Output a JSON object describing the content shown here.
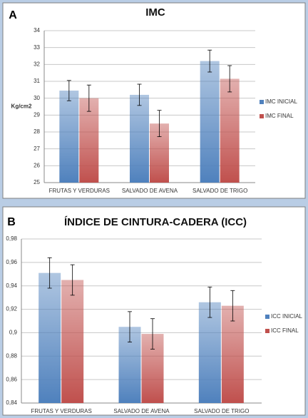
{
  "chart_data": [
    {
      "type": "bar",
      "panel": "A",
      "title": "IMC",
      "y_label": "Kg/cm2",
      "categories": [
        "FRUTAS Y VERDURAS",
        "SALVADO DE AVENA",
        "SALVADO DE TRIGO"
      ],
      "series": [
        {
          "name": "IMC INICIAL",
          "color": "#4f81bd",
          "values": [
            30.45,
            30.2,
            32.2
          ],
          "errors": [
            0.6,
            0.63,
            0.65
          ]
        },
        {
          "name": "IMC FINAL",
          "color": "#c0504d",
          "values": [
            30.0,
            28.5,
            31.15
          ],
          "errors": [
            0.78,
            0.78,
            0.78
          ]
        }
      ],
      "ylim": [
        25,
        34
      ],
      "yticks": [
        25,
        26,
        27,
        28,
        29,
        30,
        31,
        32,
        33,
        34
      ],
      "grid": true,
      "legend": "right"
    },
    {
      "type": "bar",
      "panel": "B",
      "title": "ÍNDICE DE CINTURA-CADERA (ICC)",
      "categories": [
        "FRUTAS Y VERDURAS",
        "SALVADO DE AVENA",
        "SALVADO DE TRIGO"
      ],
      "series": [
        {
          "name": "ICC INICIAL",
          "color": "#4f81bd",
          "values": [
            0.951,
            0.905,
            0.926
          ],
          "errors": [
            0.013,
            0.013,
            0.013
          ]
        },
        {
          "name": "ICC FINAL",
          "color": "#c0504d",
          "values": [
            0.945,
            0.899,
            0.923
          ],
          "errors": [
            0.013,
            0.013,
            0.013
          ]
        }
      ],
      "ylim": [
        0.84,
        0.98
      ],
      "yticks": [
        {
          "value": 0.84,
          "label": "0,84"
        },
        {
          "value": 0.86,
          "label": "0,86"
        },
        {
          "value": 0.88,
          "label": "0,88"
        },
        {
          "value": 0.9,
          "label": "0,9"
        },
        {
          "value": 0.92,
          "label": "0,92"
        },
        {
          "value": 0.94,
          "label": "0,94"
        },
        {
          "value": 0.96,
          "label": "0,96"
        },
        {
          "value": 0.98,
          "label": "0,98"
        }
      ],
      "grid": true,
      "legend": "right"
    }
  ]
}
